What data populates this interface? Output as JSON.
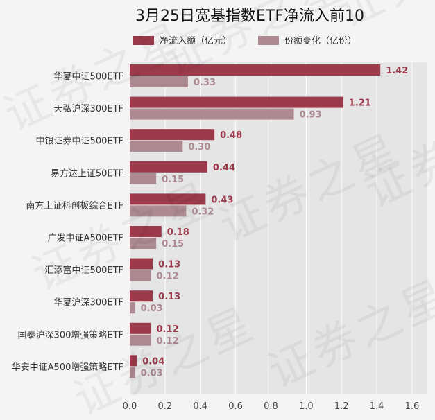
{
  "chart_data": {
    "type": "bar",
    "orientation": "horizontal",
    "title": "3月25日宽基指数ETF净流入前10",
    "categories": [
      "华夏中证500ETF",
      "天弘沪深300ETF",
      "中银证券中证500ETF",
      "易方达上证50ETF",
      "南方上证科创板综合ETF",
      "广发中证A500ETF",
      "汇添富中证500ETF",
      "华夏沪深300ETF",
      "国泰沪深300增强策略ETF",
      "华安中证A500增强策略ETF"
    ],
    "series": [
      {
        "name": "净流入额（亿元）",
        "color": "#9b3a4b",
        "values": [
          1.42,
          1.21,
          0.48,
          0.44,
          0.43,
          0.18,
          0.13,
          0.13,
          0.12,
          0.04
        ],
        "labels": [
          "1.42",
          "1.21",
          "0.48",
          "0.44",
          "0.43",
          "0.18",
          "0.13",
          "0.13",
          "0.12",
          "0.04"
        ]
      },
      {
        "name": "份额变化（亿份）",
        "color": "#ad8a92",
        "values": [
          0.33,
          0.93,
          0.3,
          0.15,
          0.32,
          0.15,
          0.12,
          0.03,
          0.12,
          0.03
        ],
        "labels": [
          "0.33",
          "0.93",
          "0.30",
          "0.15",
          "0.32",
          "0.15",
          "0.12",
          "0.03",
          "0.12",
          "0.03"
        ]
      }
    ],
    "xlim": [
      0,
      1.7
    ],
    "xticks": [
      "0.0",
      "0.2",
      "0.4",
      "0.6",
      "0.8",
      "1.0",
      "1.2",
      "1.4",
      "1.6"
    ],
    "grid": true,
    "legend": "top"
  },
  "watermark": "证券之星"
}
